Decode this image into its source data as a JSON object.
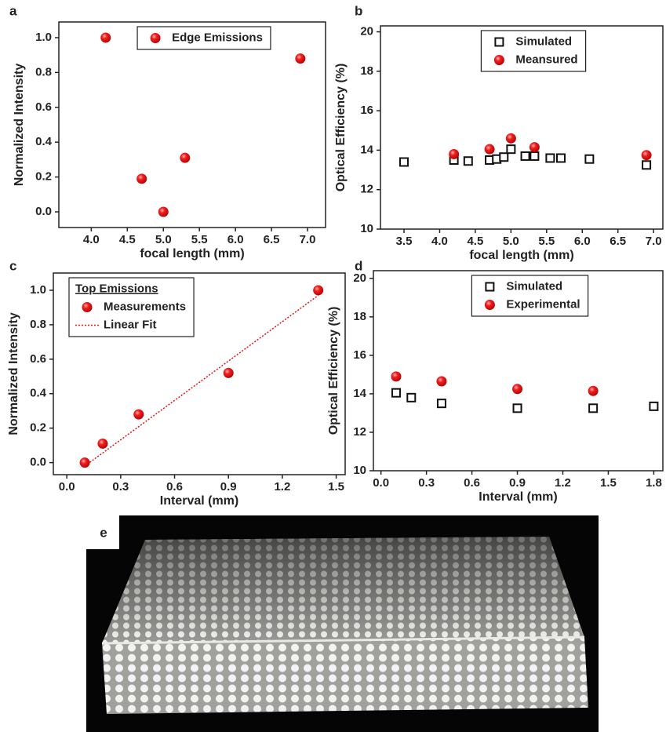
{
  "chart_data": [
    {
      "type": "scatter",
      "label": "a",
      "xlabel": "focal length (mm)",
      "ylabel": "Normalized Intensity",
      "xlim": [
        3.55,
        7.25
      ],
      "ylim": [
        -0.09,
        1.09
      ],
      "xticks": [
        {
          "value": 4.0,
          "label": "4.0"
        },
        4.5,
        {
          "value": 5.0,
          "label": "5.0"
        },
        5.5,
        {
          "value": 6.0,
          "label": "6.0"
        },
        6.5,
        {
          "value": 7.0,
          "label": "7.0"
        }
      ],
      "yticks": [
        {
          "value": 0.0,
          "label": "0.0"
        },
        0.2,
        0.4,
        0.6,
        0.8,
        {
          "value": 1.0,
          "label": "1.0"
        }
      ],
      "legend": "upper center",
      "series": [
        {
          "name": "Edge Emissions",
          "color": "#e81010",
          "marker": "circle",
          "x": [
            4.2,
            4.7,
            5.0,
            5.3,
            6.9
          ],
          "values": [
            1.0,
            0.19,
            0.0,
            0.31,
            0.88
          ]
        }
      ]
    },
    {
      "type": "scatter",
      "label": "b",
      "xlabel": "focal length (mm)",
      "ylabel": "Optical Efficiency (%)",
      "xlim": [
        3.17,
        7.13
      ],
      "ylim": [
        10,
        20.3
      ],
      "xticks": [
        3.5,
        {
          "value": 4.0,
          "label": "4.0"
        },
        4.5,
        {
          "value": 5.0,
          "label": "5.0"
        },
        5.5,
        {
          "value": 6.0,
          "label": "6.0"
        },
        6.5,
        {
          "value": 7.0,
          "label": "7.0"
        }
      ],
      "yticks": [
        10,
        12,
        14,
        16,
        18,
        20
      ],
      "legend": "upper center",
      "series": [
        {
          "name": "Simulated",
          "color": "#111111",
          "marker": "square",
          "x": [
            3.5,
            4.2,
            4.4,
            4.7,
            4.8,
            4.9,
            5.0,
            5.2,
            5.33,
            5.55,
            5.7,
            6.1,
            6.9
          ],
          "values": [
            13.4,
            13.5,
            13.45,
            13.5,
            13.55,
            13.65,
            14.05,
            13.7,
            13.7,
            13.6,
            13.6,
            13.55,
            13.25
          ]
        },
        {
          "name": "Meansured",
          "color": "#e81010",
          "marker": "circle",
          "x": [
            4.2,
            4.7,
            5.0,
            5.33,
            6.9
          ],
          "values": [
            13.8,
            14.05,
            14.6,
            14.15,
            13.75
          ]
        }
      ]
    },
    {
      "type": "scatter",
      "label": "c",
      "xlabel": "Interval (mm)",
      "ylabel": "Normalized Intensity",
      "xlim": [
        -0.075,
        1.55
      ],
      "ylim": [
        -0.07,
        1.1
      ],
      "xticks": [
        {
          "value": 0.0,
          "label": "0.0"
        },
        0.3,
        0.6,
        0.9,
        1.2,
        1.5
      ],
      "yticks": [
        {
          "value": 0.0,
          "label": "0.0"
        },
        0.2,
        0.4,
        0.6,
        0.8,
        {
          "value": 1.0,
          "label": "1.0"
        }
      ],
      "legend": "upper left",
      "legend_title": "Top Emissions",
      "series": [
        {
          "name": "Measurements",
          "color": "#e81010",
          "marker": "circle",
          "x": [
            0.1,
            0.2,
            0.4,
            0.9,
            1.4
          ],
          "values": [
            0.0,
            0.11,
            0.28,
            0.52,
            1.0
          ]
        },
        {
          "name": "Linear Fit",
          "color": "#e81010",
          "marker": "line",
          "x": [
            0.1,
            1.4
          ],
          "values": [
            -0.02,
            0.97
          ]
        }
      ]
    },
    {
      "type": "scatter",
      "label": "d",
      "xlabel": "Interval (mm)",
      "ylabel": "Optical Efficiency (%)",
      "xlim": [
        -0.05,
        1.86
      ],
      "ylim": [
        10,
        20.4
      ],
      "xticks": [
        {
          "value": 0.0,
          "label": "0.0"
        },
        0.3,
        0.6,
        0.9,
        1.2,
        1.5,
        1.8
      ],
      "yticks": [
        10,
        12,
        14,
        16,
        18,
        20
      ],
      "legend": "upper center",
      "series": [
        {
          "name": "Simulated",
          "color": "#111111",
          "marker": "square",
          "x": [
            0.1,
            0.2,
            0.4,
            0.9,
            1.4,
            1.8
          ],
          "values": [
            14.05,
            13.8,
            13.5,
            13.25,
            13.25,
            13.35
          ]
        },
        {
          "name": "Experimental",
          "color": "#e81010",
          "marker": "circle",
          "x": [
            0.1,
            0.4,
            0.9,
            1.4
          ],
          "values": [
            14.9,
            14.65,
            14.25,
            14.15
          ]
        }
      ]
    }
  ],
  "panel_e": {
    "label": "e"
  }
}
